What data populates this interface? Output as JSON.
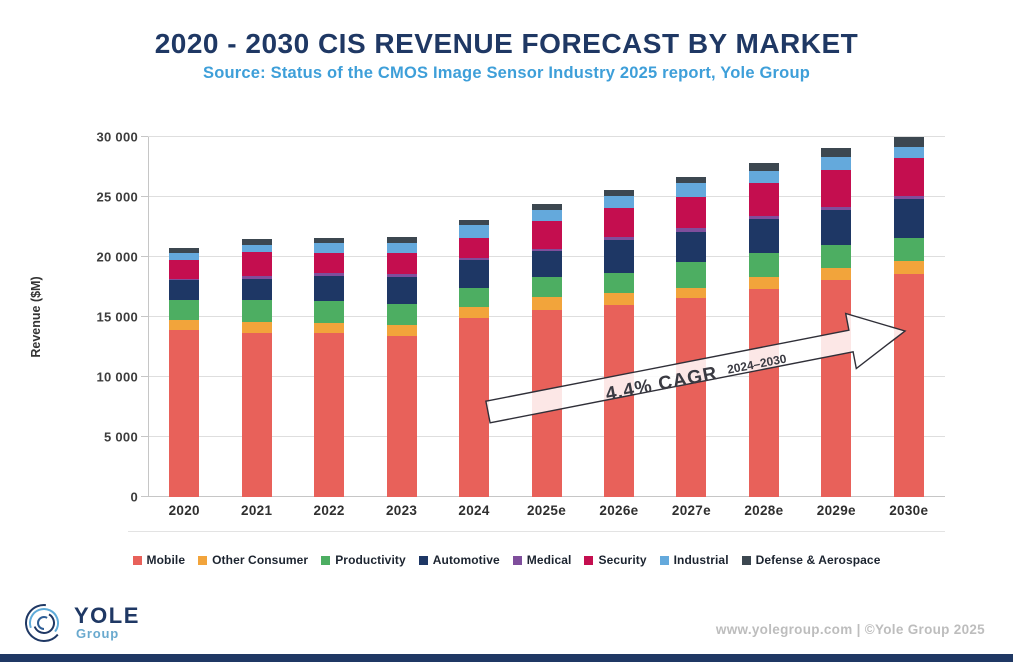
{
  "header": {
    "title": "2020 - 2030 CIS REVENUE FORECAST BY MARKET",
    "subtitle": "Source: Status of the CMOS Image Sensor Industry 2025  report, Yole Group"
  },
  "chart_data": {
    "type": "bar",
    "stacked": true,
    "title": "2020 - 2030 CIS Revenue Forecast by Market",
    "xlabel": "",
    "ylabel": "Revenue ($M)",
    "ylim": [
      0,
      30000
    ],
    "ytick_interval": 5000,
    "ytick_labels": [
      "0",
      "5 000",
      "10 000",
      "15 000",
      "20 000",
      "25 000",
      "30 000"
    ],
    "grid": true,
    "legend_position": "bottom",
    "categories": [
      "2020",
      "2021",
      "2022",
      "2023",
      "2024",
      "2025e",
      "2026e",
      "2027e",
      "2028e",
      "2029e",
      "2030e"
    ],
    "series": [
      {
        "name": "Mobile",
        "color": "#E8615A",
        "values": [
          13900,
          13700,
          13650,
          13400,
          14900,
          15600,
          16000,
          16550,
          17350,
          18100,
          18550
        ]
      },
      {
        "name": "Other Consumer",
        "color": "#F2A43B",
        "values": [
          850,
          850,
          850,
          900,
          950,
          1050,
          1030,
          850,
          1020,
          980,
          1100
        ]
      },
      {
        "name": "Productivity",
        "color": "#4DAE62",
        "values": [
          1650,
          1850,
          1800,
          1750,
          1600,
          1650,
          1670,
          2150,
          1950,
          1940,
          1900
        ]
      },
      {
        "name": "Automotive",
        "color": "#1E3765",
        "values": [
          1650,
          1800,
          2080,
          2300,
          2280,
          2200,
          2720,
          2550,
          2850,
          2900,
          3280
        ]
      },
      {
        "name": "Medical",
        "color": "#7F4E9C",
        "values": [
          150,
          200,
          280,
          250,
          220,
          200,
          230,
          280,
          280,
          280,
          280
        ]
      },
      {
        "name": "Security",
        "color": "#C40E4F",
        "values": [
          1550,
          2000,
          1670,
          1750,
          1670,
          2300,
          2420,
          2650,
          2700,
          3060,
          3120
        ]
      },
      {
        "name": "Industrial",
        "color": "#64A9DC",
        "values": [
          550,
          600,
          830,
          800,
          1030,
          900,
          1030,
          1100,
          1050,
          1100,
          970
        ]
      },
      {
        "name": "Defense & Aerospace",
        "color": "#3C4750",
        "values": [
          450,
          500,
          470,
          500,
          480,
          550,
          500,
          550,
          620,
          700,
          830
        ]
      }
    ],
    "totals": [
      20750,
      21500,
      21630,
      21650,
      23130,
      24450,
      25600,
      26680,
      27820,
      29060,
      30030
    ],
    "annotation": {
      "label": "4.4% CAGR",
      "period": "2024–2030"
    }
  },
  "footer": {
    "logo_title": "YOLE",
    "logo_subtitle": "Group",
    "credit": "www.yolegroup.com | ©Yole Group 2025"
  },
  "colors": {
    "title_navy": "#1F3864",
    "subtitle_blue": "#3E9FD9",
    "gridline": "#DEDEDE",
    "footer_gray": "#BDBDBD"
  }
}
